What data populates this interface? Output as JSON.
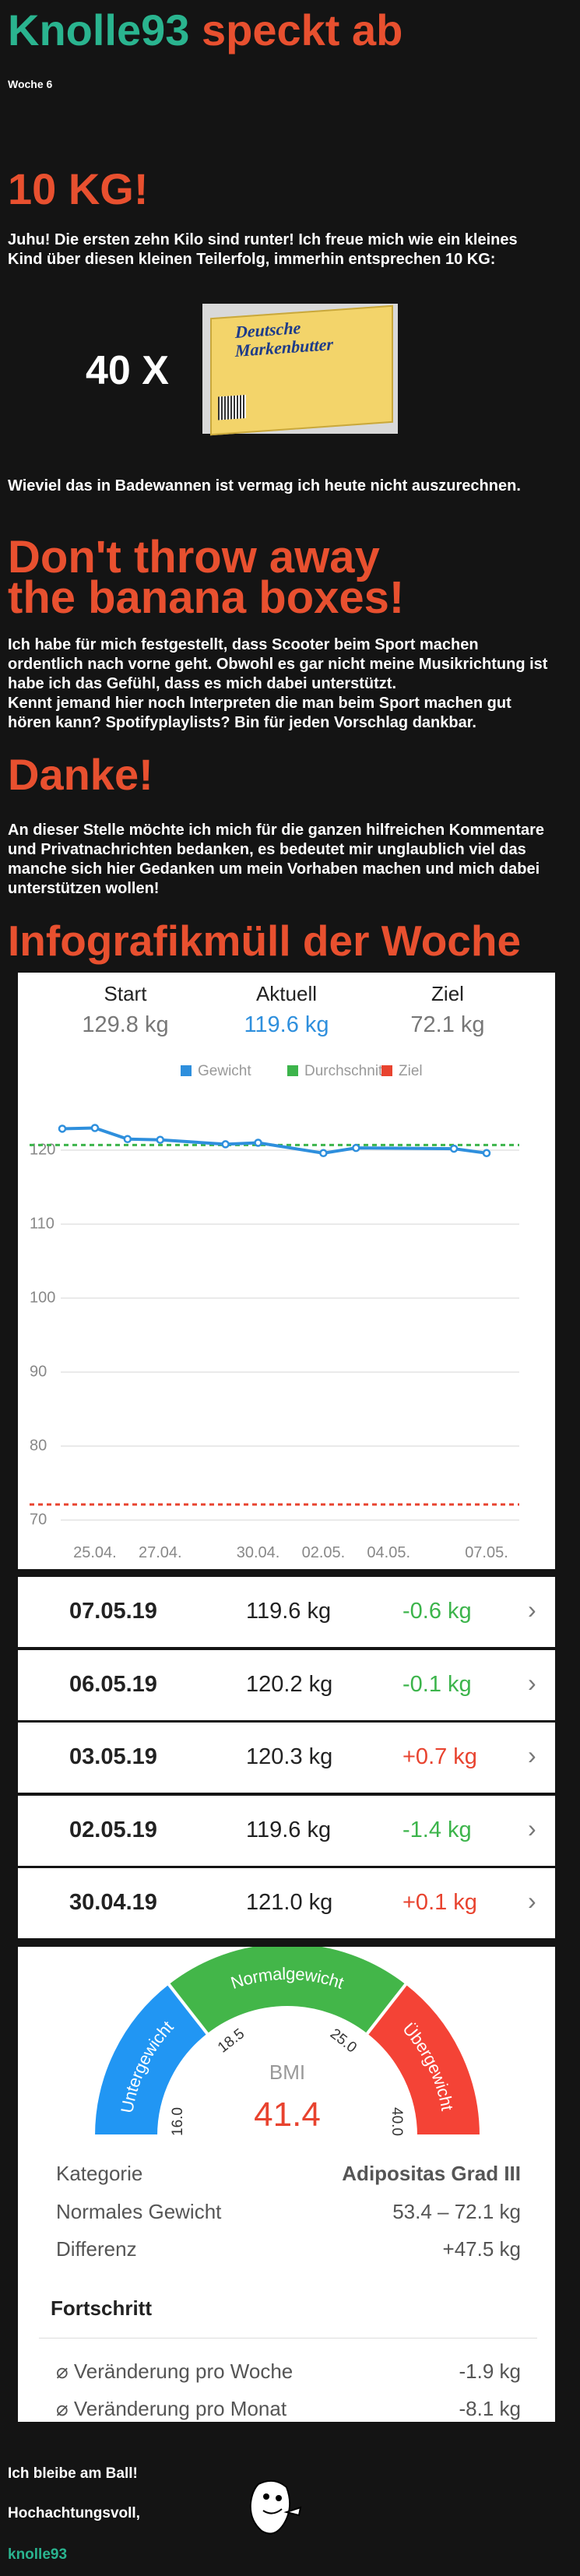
{
  "header": {
    "title": [
      "Knolle93",
      "speckt ab"
    ],
    "week": "Woche 6"
  },
  "section1": {
    "heading": "10 KG!",
    "text": "Juhu! Die ersten zehn Kilo sind runter! Ich freue mich wie ein kleines Kind über diesen kleinen Teilerfolg, immerhin entsprechen 10 KG:",
    "multiplier": "40 X",
    "image_text": [
      "Deutsche",
      "Markenbutter"
    ],
    "after": "Wieviel das in Badewannen ist vermag ich heute nicht auszurechnen."
  },
  "section2": {
    "heading": [
      "Don't throw away",
      "the banana boxes!"
    ],
    "paragraphs": [
      "Ich habe für mich festgestellt, dass Scooter beim Sport machen ordentlich nach vorne geht. Obwohl es gar nicht meine Musikrichtung ist habe ich das Gefühl, dass es mich dabei unterstützt.",
      "Kennt jemand hier noch Interpreten die man beim Sport machen gut hören kann? Spotifyplaylists? Bin für jeden Vorschlag dankbar."
    ]
  },
  "section3": {
    "heading": "Danke!",
    "text": "An dieser Stelle möchte ich mich für die ganzen hilfreichen Kommentare und Privatnachrichten bedanken, es bedeutet mir unglaublich viel das manche sich hier Gedanken um mein Vorhaben machen und mich dabei unterstützen wollen!"
  },
  "infographic": {
    "heading": "Infografikmüll der Woche",
    "summary": [
      {
        "label": "Start",
        "value": "129.8 kg"
      },
      {
        "label": "Aktuell",
        "value": "119.6 kg"
      },
      {
        "label": "Ziel",
        "value": "72.1 kg"
      }
    ]
  },
  "chart_data": {
    "type": "line",
    "x": [
      0,
      1,
      2,
      3,
      5,
      6,
      8,
      9,
      12,
      13
    ],
    "xlim": [
      0,
      13
    ],
    "xticks": [
      {
        "value": 1,
        "label": "25.04."
      },
      {
        "value": 3,
        "label": "27.04."
      },
      {
        "value": 6,
        "label": "30.04."
      },
      {
        "value": 8,
        "label": "02.05."
      },
      {
        "value": 10,
        "label": "04.05."
      },
      {
        "value": 13,
        "label": "07.05."
      }
    ],
    "ylim": [
      70,
      126
    ],
    "yticks": [
      70,
      80,
      90,
      100,
      110,
      120
    ],
    "grid": true,
    "series": [
      {
        "name": "Gewicht",
        "color": "#2e8fdd",
        "values": [
          122.9,
          123.0,
          121.5,
          121.4,
          120.8,
          121.0,
          119.6,
          120.3,
          120.2,
          119.6
        ]
      }
    ],
    "reference_lines": [
      {
        "name": "Durchschnitt",
        "color": "#3cb44b",
        "value": 120.7
      },
      {
        "name": "Ziel",
        "color": "#e8432f",
        "value": 72.1
      }
    ]
  },
  "entries": [
    {
      "date": "07.05.19",
      "weight": "119.6 kg",
      "change": "-0.6 kg",
      "color": "#3cb44b"
    },
    {
      "date": "06.05.19",
      "weight": "120.2 kg",
      "change": "-0.1 kg",
      "color": "#3cb44b"
    },
    {
      "date": "03.05.19",
      "weight": "120.3 kg",
      "change": "+0.7 kg",
      "color": "#e8432f"
    },
    {
      "date": "02.05.19",
      "weight": "119.6 kg",
      "change": "-1.4 kg",
      "color": "#3cb44b"
    },
    {
      "date": "30.04.19",
      "weight": "121.0 kg",
      "change": "+0.1 kg",
      "color": "#e8432f"
    }
  ],
  "bmi": {
    "segments": [
      {
        "label": "Untergewicht",
        "color": "#2196f3"
      },
      {
        "label": "Normalgewicht",
        "color": "#43b649"
      },
      {
        "label": "Übergewicht",
        "color": "#f44336"
      }
    ],
    "ticks": [
      "16.0",
      "18.5",
      "25.0",
      "40.0"
    ],
    "label": "BMI",
    "value": "41.4",
    "value_color": "#e8432f"
  },
  "details": [
    [
      "Kategorie",
      "Adipositas Grad III"
    ],
    [
      "Normales Gewicht",
      "53.4 – 72.1 kg"
    ],
    [
      "Differenz",
      "+47.5 kg"
    ]
  ],
  "progress": {
    "title": "Fortschritt",
    "rows": [
      [
        "⌀ Veränderung pro Woche",
        "-1.9 kg"
      ],
      [
        "⌀ Veränderung pro Monat",
        "-8.1 kg"
      ]
    ]
  },
  "footer": {
    "lines": [
      "Ich bleibe am Ball!",
      "Hochachtungsvoll,"
    ],
    "signature": "knolle93"
  }
}
